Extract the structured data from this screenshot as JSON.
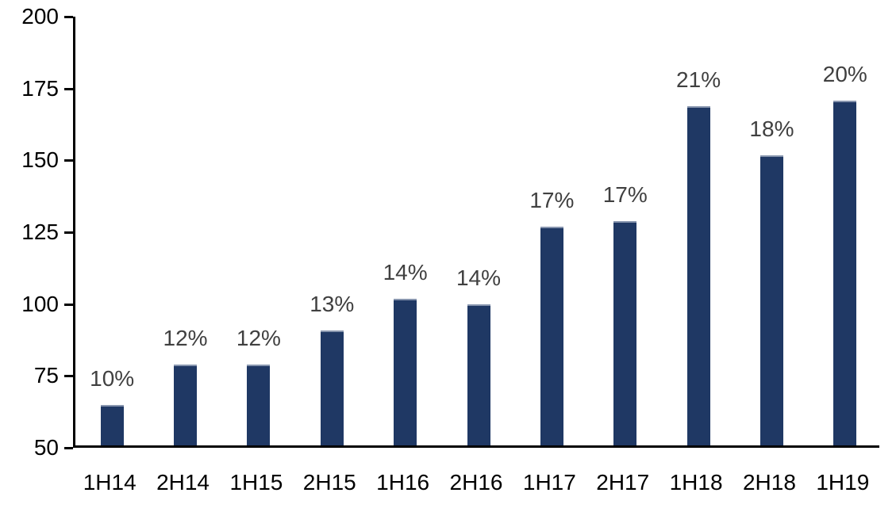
{
  "chart_data": {
    "type": "bar",
    "title": "",
    "xlabel": "",
    "ylabel": "",
    "categories": [
      "1H14",
      "2H14",
      "1H15",
      "2H15",
      "1H16",
      "2H16",
      "1H17",
      "2H17",
      "1H18",
      "2H18",
      "1H19"
    ],
    "values": [
      64,
      78,
      78,
      90,
      101,
      99,
      126,
      128,
      168,
      151,
      170
    ],
    "data_labels": [
      "10%",
      "12%",
      "12%",
      "13%",
      "14%",
      "14%",
      "17%",
      "17%",
      "21%",
      "18%",
      "20%"
    ],
    "ylim": [
      50,
      200
    ],
    "y_ticks": [
      200,
      175,
      150,
      125,
      100,
      75,
      50
    ],
    "y_tick_step": 25,
    "grid": false,
    "legend": false,
    "colors": {
      "bar_fill": "#1F3864",
      "bar_top_edge": "#8795ae",
      "data_label": "#404040",
      "axis_line": "#000000",
      "axis_text": "#000000"
    }
  }
}
